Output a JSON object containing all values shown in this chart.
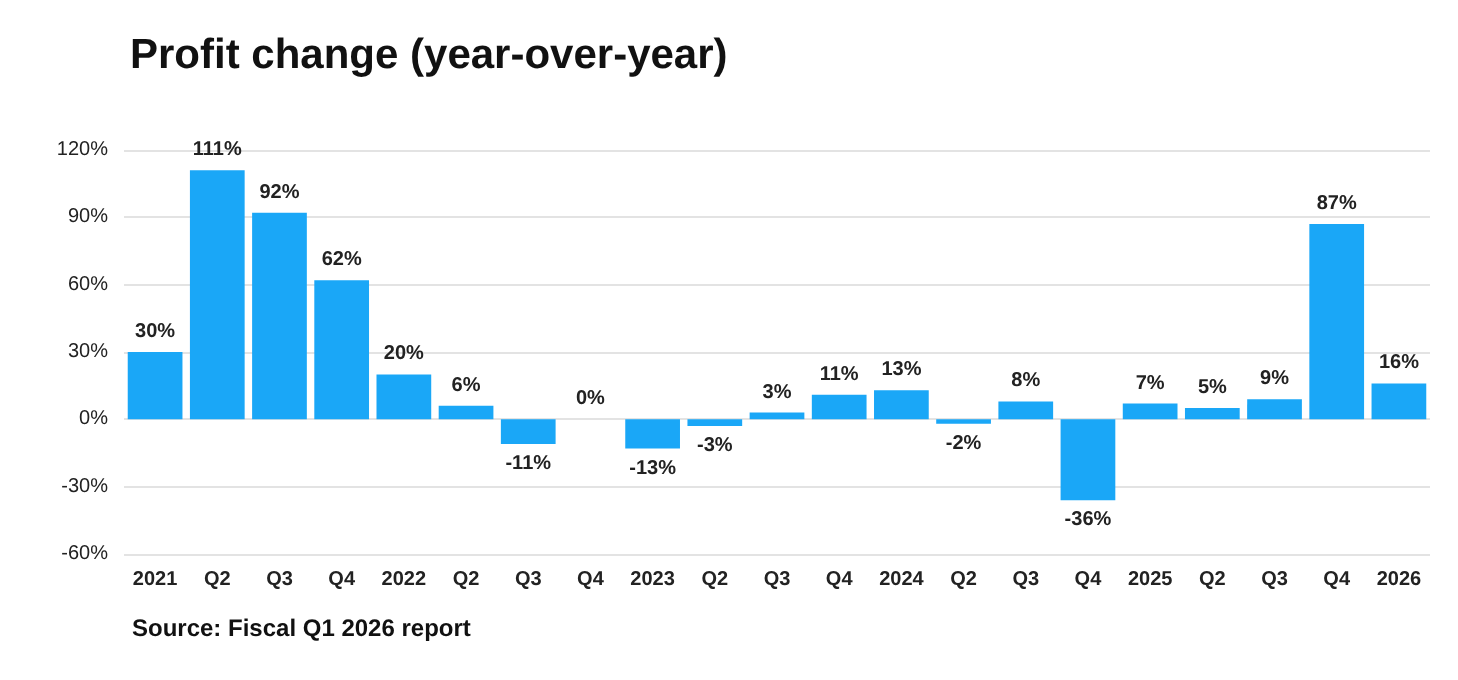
{
  "chart_data": {
    "type": "bar",
    "title": "Profit change (year-over-year)",
    "categories": [
      "2021",
      "Q2",
      "Q3",
      "Q4",
      "2022",
      "Q2",
      "Q3",
      "Q4",
      "2023",
      "Q2",
      "Q3",
      "Q4",
      "2024",
      "Q2",
      "Q3",
      "Q4",
      "2025",
      "Q2",
      "Q3",
      "Q4",
      "2026"
    ],
    "values": [
      30,
      111,
      92,
      62,
      20,
      6,
      -11,
      0,
      -13,
      -3,
      3,
      11,
      13,
      -2,
      8,
      -36,
      7,
      5,
      9,
      87,
      16
    ],
    "value_labels": [
      "30%",
      "111%",
      "92%",
      "62%",
      "20%",
      "6%",
      "-11%",
      "0%",
      "-13%",
      "-3%",
      "3%",
      "11%",
      "13%",
      "-2%",
      "8%",
      "-36%",
      "7%",
      "5%",
      "9%",
      "87%",
      "16%"
    ],
    "color": "#1aa7f7",
    "ylim": [
      -60,
      120
    ],
    "yticks": [
      {
        "value": -60,
        "label": "-60%"
      },
      {
        "value": -30,
        "label": "-30%"
      },
      {
        "value": 0,
        "label": "0%"
      },
      {
        "value": 30,
        "label": "30%"
      },
      {
        "value": 60,
        "label": "60%"
      },
      {
        "value": 90,
        "label": "90%"
      },
      {
        "value": 120,
        "label": "120%"
      }
    ],
    "grid": "y",
    "annotations": [
      "Source: Fiscal Q1 2026 report"
    ]
  }
}
